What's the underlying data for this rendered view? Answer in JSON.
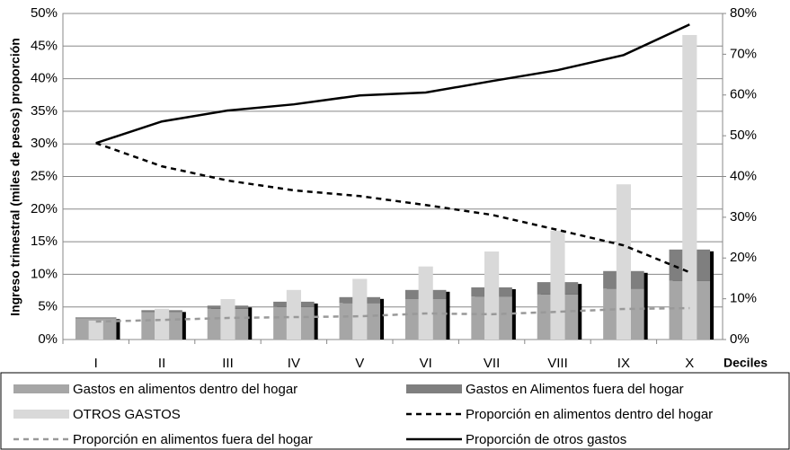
{
  "chart_data": {
    "type": "bar",
    "y_label": "Ingreso trimestral (miles de pesos) proporción",
    "x_label": "Deciles",
    "categories": [
      "I",
      "II",
      "III",
      "IV",
      "V",
      "VI",
      "VII",
      "VIII",
      "IX",
      "X"
    ],
    "series": [
      {
        "name": "Gastos en alimentos dentro del hogar",
        "type": "bar",
        "stack": "alimentos",
        "color": "#a6a6a6",
        "values": [
          3.2,
          4.2,
          4.7,
          5.0,
          5.6,
          6.2,
          6.6,
          6.9,
          7.8,
          9.0
        ]
      },
      {
        "name": "Gastos en Alimentos fuera del hogar",
        "type": "bar",
        "stack": "alimentos",
        "color": "#7f7f7f",
        "values": [
          0.2,
          0.3,
          0.5,
          0.8,
          0.9,
          1.4,
          1.4,
          1.9,
          2.7,
          4.8
        ]
      },
      {
        "name": "OTROS GASTOS",
        "type": "bar",
        "color": "#d9d9d9",
        "values": [
          2.9,
          4.7,
          6.2,
          7.6,
          9.3,
          11.2,
          13.5,
          16.7,
          23.8,
          46.7
        ]
      },
      {
        "name": "Proporción en alimentos dentro del hogar",
        "type": "line",
        "axis": "y2",
        "color": "#000000",
        "dash": "dashed",
        "values": [
          48.2,
          42.5,
          39.0,
          36.6,
          35.2,
          33.0,
          30.6,
          26.9,
          23.1,
          16.5
        ]
      },
      {
        "name": "Proporción en alimentos fuera del hogar",
        "type": "line",
        "axis": "y2",
        "color": "#999999",
        "dash": "dashed",
        "values": [
          4.4,
          4.8,
          5.3,
          5.5,
          5.7,
          6.4,
          6.2,
          6.8,
          7.5,
          7.7
        ]
      },
      {
        "name": "Proporción de otros gastos",
        "type": "line",
        "axis": "y2",
        "color": "#000000",
        "dash": "solid",
        "values": [
          48.2,
          53.5,
          56.2,
          57.7,
          59.9,
          60.6,
          63.4,
          66.1,
          69.8,
          77.3
        ]
      }
    ],
    "ylim": [
      0,
      50
    ],
    "yticks": [
      {
        "value": 0,
        "label": "0%"
      },
      {
        "value": 5,
        "label": "5%"
      },
      {
        "value": 10,
        "label": "10%"
      },
      {
        "value": 15,
        "label": "15%"
      },
      {
        "value": 20,
        "label": "20%"
      },
      {
        "value": 25,
        "label": "25%"
      },
      {
        "value": 30,
        "label": "30%"
      },
      {
        "value": 35,
        "label": "35%"
      },
      {
        "value": 40,
        "label": "40%"
      },
      {
        "value": 45,
        "label": "45%"
      },
      {
        "value": 50,
        "label": "50%"
      }
    ],
    "y2lim": [
      0,
      80
    ],
    "y2ticks": [
      {
        "value": 0,
        "label": "0%"
      },
      {
        "value": 10,
        "label": "10%"
      },
      {
        "value": 20,
        "label": "20%"
      },
      {
        "value": 30,
        "label": "30%"
      },
      {
        "value": 40,
        "label": "40%"
      },
      {
        "value": 50,
        "label": "50%"
      },
      {
        "value": 60,
        "label": "60%"
      },
      {
        "value": 70,
        "label": "70%"
      },
      {
        "value": 80,
        "label": "80%"
      }
    ],
    "grid": true,
    "legend": "bottom"
  }
}
